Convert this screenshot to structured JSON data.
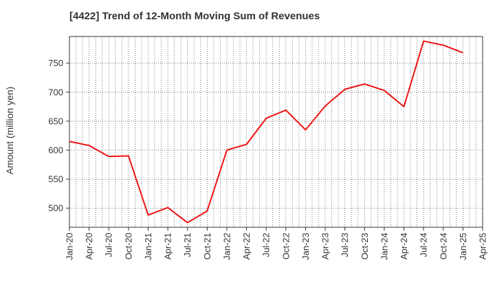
{
  "chart_data": {
    "type": "line",
    "title": "[4422]  Trend of 12-Month Moving Sum of Revenues",
    "ylabel": "Amount (million yen)",
    "xlabel": "",
    "grid": true,
    "ylim": [
      467,
      796
    ],
    "y_ticks": [
      500,
      550,
      600,
      650,
      700,
      750
    ],
    "x_tick_labels": [
      "Jan-20",
      "Apr-20",
      "Jul-20",
      "Oct-20",
      "Jan-21",
      "Apr-21",
      "Jul-21",
      "Oct-21",
      "Jan-22",
      "Apr-22",
      "Jul-22",
      "Oct-22",
      "Jan-23",
      "Apr-23",
      "Jul-23",
      "Oct-23",
      "Jan-24",
      "Apr-24",
      "Jul-24",
      "Oct-24",
      "Jan-25",
      "Apr-25"
    ],
    "series": [
      {
        "color": "#ee1111",
        "x": [
          "Jan-20",
          "Apr-20",
          "Jul-20",
          "Oct-20",
          "Jan-21",
          "Apr-21",
          "Jul-21",
          "Oct-21",
          "Jan-22",
          "Apr-22",
          "Jul-22",
          "Oct-22",
          "Jan-23",
          "Apr-23",
          "Jul-23",
          "Oct-23",
          "Jan-24",
          "Apr-24",
          "Jul-24",
          "Oct-24",
          "Jan-25"
        ],
        "values": [
          615,
          608,
          589,
          590,
          488,
          501,
          475,
          495,
          600,
          610,
          655,
          669,
          635,
          676,
          705,
          714,
          703,
          675,
          788,
          781,
          768
        ]
      }
    ]
  }
}
